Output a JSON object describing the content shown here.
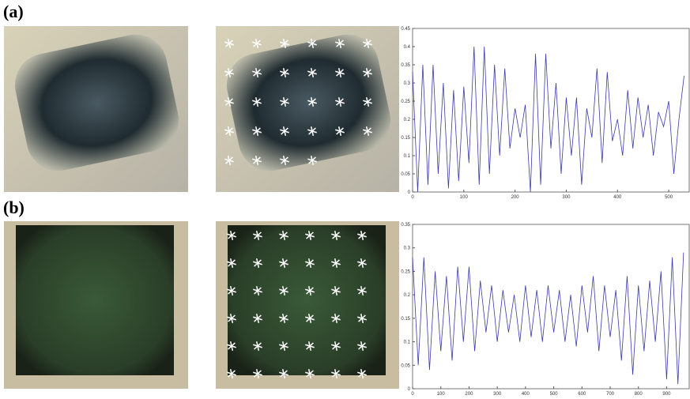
{
  "panel_labels": [
    "(a)",
    "(b)"
  ],
  "chart_data": [
    {
      "type": "line",
      "x": [
        0,
        10,
        20,
        30,
        40,
        50,
        60,
        70,
        80,
        90,
        100,
        110,
        120,
        130,
        140,
        150,
        160,
        170,
        180,
        190,
        200,
        210,
        220,
        230,
        240,
        250,
        260,
        270,
        280,
        290,
        300,
        310,
        320,
        330,
        340,
        350,
        360,
        370,
        380,
        390,
        400,
        410,
        420,
        430,
        440,
        450,
        460,
        470,
        480,
        490,
        500,
        510,
        520,
        530
      ],
      "series": [
        {
          "color": "#3a3aa8",
          "values": [
            0.33,
            0,
            0.35,
            0.02,
            0.35,
            0.05,
            0.3,
            0.01,
            0.28,
            0.03,
            0.29,
            0.08,
            0.4,
            0.02,
            0.4,
            0.05,
            0.35,
            0.1,
            0.34,
            0.12,
            0.23,
            0.15,
            0.24,
            0,
            0.38,
            0.02,
            0.38,
            0.12,
            0.3,
            0.05,
            0.26,
            0.1,
            0.26,
            0.02,
            0.23,
            0.15,
            0.34,
            0.08,
            0.33,
            0.14,
            0.2,
            0.1,
            0.28,
            0.12,
            0.26,
            0.15,
            0.24,
            0.1,
            0.22,
            0.18,
            0.25,
            0.05,
            0.2,
            0.32
          ]
        }
      ],
      "xlim": [
        0,
        540
      ],
      "xticks": [
        0,
        100,
        200,
        300,
        400,
        500
      ],
      "ylim": [
        0,
        0.45
      ],
      "yticks": [
        0,
        0.05,
        0.1,
        0.15,
        0.2,
        0.25,
        0.3,
        0.35,
        0.4,
        0.45
      ]
    },
    {
      "type": "line",
      "x": [
        0,
        20,
        40,
        60,
        80,
        100,
        120,
        140,
        160,
        180,
        200,
        220,
        240,
        260,
        280,
        300,
        320,
        340,
        360,
        380,
        400,
        420,
        440,
        460,
        480,
        500,
        520,
        540,
        560,
        580,
        600,
        620,
        640,
        660,
        680,
        700,
        720,
        740,
        760,
        780,
        800,
        820,
        840,
        860,
        880,
        900,
        920,
        940,
        960
      ],
      "series": [
        {
          "color": "#3a3aa8",
          "values": [
            0.28,
            0.05,
            0.28,
            0.04,
            0.25,
            0.08,
            0.24,
            0.06,
            0.26,
            0.1,
            0.26,
            0.08,
            0.23,
            0.12,
            0.22,
            0.1,
            0.21,
            0.12,
            0.2,
            0.1,
            0.22,
            0.11,
            0.21,
            0.1,
            0.22,
            0.12,
            0.21,
            0.1,
            0.2,
            0.09,
            0.22,
            0.12,
            0.24,
            0.08,
            0.22,
            0.11,
            0.21,
            0.06,
            0.24,
            0.03,
            0.22,
            0.08,
            0.23,
            0.1,
            0.25,
            0.02,
            0.28,
            0.01,
            0.29
          ]
        }
      ],
      "xlim": [
        0,
        980
      ],
      "xticks": [
        0,
        100,
        200,
        300,
        400,
        500,
        600,
        700,
        800,
        900
      ],
      "ylim": [
        0,
        0.35
      ],
      "yticks": [
        0,
        0.05,
        0.1,
        0.15,
        0.2,
        0.25,
        0.3,
        0.35
      ]
    }
  ]
}
